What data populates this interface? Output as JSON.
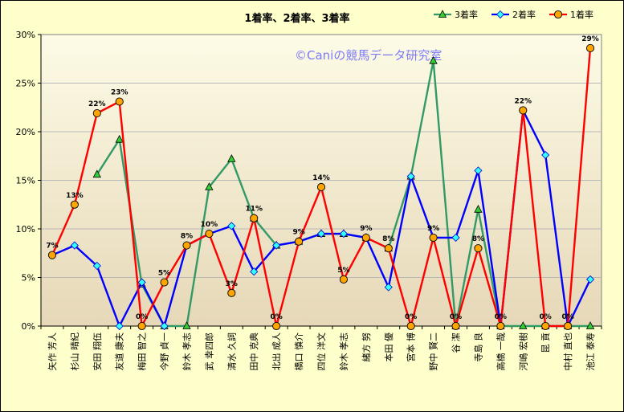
{
  "chart_data": {
    "type": "line",
    "title": "1着率、2着率、3着率",
    "watermark": "©Caniの競馬データ研究室",
    "ylim": [
      0,
      30
    ],
    "yticks": [
      "0%",
      "5%",
      "10%",
      "15%",
      "20%",
      "25%",
      "30%"
    ],
    "ytick_values": [
      0,
      5,
      10,
      15,
      20,
      25,
      30
    ],
    "categories": [
      "矢作 芳人",
      "杉山 晴紀",
      "安田 翔伍",
      "友道 康夫",
      "梅田 智之",
      "今野 貞一",
      "鈴木 孝志",
      "武 幸四郎",
      "清水 久詞",
      "田中 克典",
      "北出 成人",
      "橋口 慎介",
      "四位 洋文",
      "鈴木 孝志",
      "緒方 努",
      "本田 優",
      "宮本 博",
      "野中 賢二",
      "谷 潔",
      "寺島 良",
      "高橋 一哉",
      "河嶋 宏樹",
      "昆 貢",
      "中村 直也",
      "池江 泰寿"
    ],
    "legend_position": "top-right",
    "series": [
      {
        "name": "3着率",
        "color": "#339966",
        "marker": "triangle",
        "marker_color": "#33cc33",
        "values": [
          null,
          null,
          15.6,
          19.2,
          4.3,
          0,
          0,
          14.3,
          17.2,
          11.1,
          8.3,
          8.7,
          9.5,
          9.5,
          9.1,
          8.0,
          15.4,
          27.3,
          0,
          12.0,
          0,
          0,
          0,
          0,
          0
        ]
      },
      {
        "name": "2着率",
        "color": "#0000ff",
        "marker": "diamond",
        "marker_color": "#33ffff",
        "values": [
          7.3,
          8.3,
          6.2,
          0,
          4.5,
          0,
          8.3,
          9.5,
          10.3,
          5.6,
          8.3,
          8.7,
          9.5,
          9.5,
          9.1,
          4.0,
          15.4,
          9.1,
          9.1,
          16.0,
          0,
          22.2,
          17.6,
          0,
          4.8
        ]
      },
      {
        "name": "1着率",
        "color": "#ff0000",
        "marker": "circle",
        "marker_color": "#ffa500",
        "values": [
          7.3,
          12.5,
          21.9,
          23.1,
          0,
          4.5,
          8.3,
          9.5,
          3.4,
          11.1,
          0,
          8.7,
          14.3,
          4.8,
          9.1,
          8.0,
          0,
          9.1,
          0,
          8.0,
          0,
          22.2,
          0,
          0,
          28.6
        ]
      }
    ],
    "data_labels": [
      "7%",
      "13%",
      "22%",
      "23%",
      "0%",
      "5%",
      "8%",
      "10%",
      "3%",
      "11%",
      "0%",
      "9%",
      "14%",
      "5%",
      "9%",
      "8%",
      "0%",
      "9%",
      "0%",
      "8%",
      "0%",
      "22%",
      "0%",
      "0%",
      "29%"
    ]
  }
}
